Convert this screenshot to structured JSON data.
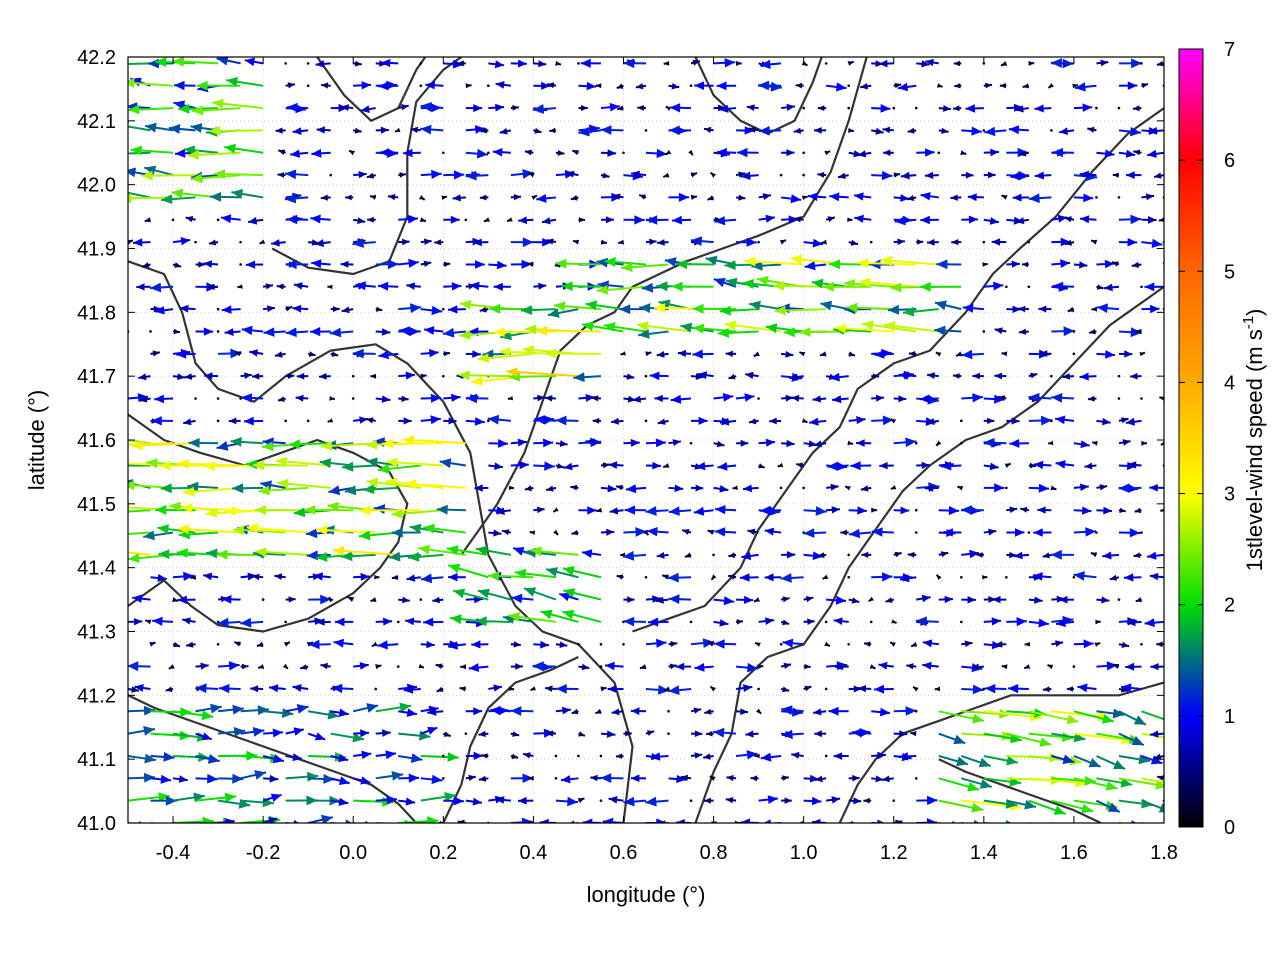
{
  "chart_data": {
    "type": "vector-field",
    "title": "",
    "xlabel": "longitude (°)",
    "ylabel": "latitude (°)",
    "xlim": [
      -0.5,
      1.8
    ],
    "ylim": [
      41.0,
      42.2
    ],
    "xticks": [
      -0.4,
      -0.2,
      0.0,
      0.2,
      0.4,
      0.6,
      0.8,
      1.0,
      1.2,
      1.4,
      1.6,
      1.8
    ],
    "xtick_labels": [
      "-0.4",
      "-0.2",
      "0.0",
      "0.2",
      "0.4",
      "0.6",
      "0.8",
      "1.0",
      "1.2",
      "1.4",
      "1.6",
      "1.8"
    ],
    "yticks": [
      41.0,
      41.1,
      41.2,
      41.3,
      41.4,
      41.5,
      41.6,
      41.7,
      41.8,
      41.9,
      42.0,
      42.1,
      42.2
    ],
    "ytick_labels": [
      "41.0",
      "41.1",
      "41.2",
      "41.3",
      "41.4",
      "41.5",
      "41.6",
      "41.7",
      "41.8",
      "41.9",
      "42.0",
      "42.1",
      "42.2"
    ],
    "grid": true,
    "colorbar": {
      "label_main": "1stlevel-wind speed (m s",
      "label_sup": "-1",
      "label_end": ")",
      "range": [
        0,
        7
      ],
      "ticks": [
        0,
        1,
        2,
        3,
        4,
        5,
        6,
        7
      ],
      "tick_labels": [
        "0",
        "1",
        "2",
        "3",
        "4",
        "5",
        "6",
        "7"
      ],
      "stops": [
        {
          "v": 0,
          "color": "#000000"
        },
        {
          "v": 1,
          "color": "#0000ff"
        },
        {
          "v": 2,
          "color": "#00dd00"
        },
        {
          "v": 3,
          "color": "#ffff00"
        },
        {
          "v": 4,
          "color": "#ffaa00"
        },
        {
          "v": 5,
          "color": "#ff6600"
        },
        {
          "v": 6,
          "color": "#ff0000"
        },
        {
          "v": 7,
          "color": "#ff00ff"
        }
      ]
    },
    "vector_grid": {
      "lon_start": -0.5,
      "lon_step": 0.05,
      "lat_start": 41.0,
      "lat_step": 0.035
    },
    "wind_regions": [
      {
        "lon": [
          -0.5,
          -0.15
        ],
        "lat": [
          41.95,
          42.2
        ],
        "u": -1.8,
        "v": 0.1
      },
      {
        "lon": [
          -0.5,
          0.3
        ],
        "lat": [
          41.42,
          41.62
        ],
        "u": -2.2,
        "v": 0.05
      },
      {
        "lon": [
          0.35,
          0.55
        ],
        "lat": [
          41.68,
          41.82
        ],
        "u": -2.6,
        "v": 0.0
      },
      {
        "lon": [
          0.55,
          1.35
        ],
        "lat": [
          41.75,
          41.88
        ],
        "u": -2.0,
        "v": 0.1
      },
      {
        "lon": [
          1.3,
          1.8
        ],
        "lat": [
          41.0,
          41.2
        ],
        "u": 2.0,
        "v": -0.4
      },
      {
        "lon": [
          -0.5,
          0.2
        ],
        "lat": [
          41.0,
          41.2
        ],
        "u": 1.4,
        "v": 0.0
      },
      {
        "lon": [
          0.3,
          0.6
        ],
        "lat": [
          41.3,
          41.42
        ],
        "u": -1.8,
        "v": 0.3
      }
    ],
    "background_wind": {
      "speed": 0.9
    },
    "contour_lines": [
      {
        "points": [
          [
            -0.5,
            41.88
          ],
          [
            -0.42,
            41.86
          ],
          [
            -0.38,
            41.8
          ],
          [
            -0.35,
            41.72
          ],
          [
            -0.3,
            41.68
          ],
          [
            -0.22,
            41.66
          ],
          [
            -0.15,
            41.7
          ],
          [
            -0.05,
            41.74
          ],
          [
            0.05,
            41.75
          ],
          [
            0.12,
            41.72
          ],
          [
            0.2,
            41.66
          ],
          [
            0.26,
            41.58
          ],
          [
            0.28,
            41.5
          ],
          [
            0.3,
            41.42
          ],
          [
            0.36,
            41.34
          ],
          [
            0.42,
            41.3
          ],
          [
            0.5,
            41.28
          ],
          [
            0.58,
            41.22
          ],
          [
            0.62,
            41.12
          ],
          [
            0.6,
            41.0
          ]
        ]
      },
      {
        "points": [
          [
            -0.18,
            41.9
          ],
          [
            -0.1,
            41.87
          ],
          [
            0.0,
            41.86
          ],
          [
            0.08,
            41.88
          ],
          [
            0.12,
            41.95
          ],
          [
            0.12,
            42.05
          ],
          [
            0.14,
            42.13
          ],
          [
            0.2,
            42.18
          ],
          [
            0.24,
            42.2
          ]
        ]
      },
      {
        "points": [
          [
            0.24,
            41.42
          ],
          [
            0.32,
            41.5
          ],
          [
            0.38,
            41.58
          ],
          [
            0.42,
            41.66
          ],
          [
            0.46,
            41.74
          ],
          [
            0.52,
            41.78
          ],
          [
            0.58,
            41.8
          ],
          [
            0.62,
            41.84
          ],
          [
            0.68,
            41.86
          ],
          [
            0.74,
            41.88
          ],
          [
            0.82,
            41.9
          ],
          [
            0.9,
            41.92
          ],
          [
            1.0,
            41.95
          ],
          [
            1.06,
            42.02
          ],
          [
            1.1,
            42.1
          ],
          [
            1.14,
            42.2
          ]
        ]
      },
      {
        "points": [
          [
            0.62,
            41.3
          ],
          [
            0.7,
            41.32
          ],
          [
            0.78,
            41.34
          ],
          [
            0.86,
            41.4
          ],
          [
            0.9,
            41.46
          ],
          [
            0.96,
            41.52
          ],
          [
            1.02,
            41.58
          ],
          [
            1.08,
            41.62
          ],
          [
            1.12,
            41.68
          ],
          [
            1.2,
            41.72
          ],
          [
            1.28,
            41.74
          ],
          [
            1.36,
            41.8
          ],
          [
            1.42,
            41.86
          ],
          [
            1.48,
            41.9
          ],
          [
            1.56,
            41.95
          ],
          [
            1.64,
            42.02
          ],
          [
            1.72,
            42.08
          ],
          [
            1.8,
            42.12
          ]
        ]
      },
      {
        "points": [
          [
            0.76,
            41.0
          ],
          [
            0.8,
            41.08
          ],
          [
            0.84,
            41.14
          ],
          [
            0.86,
            41.22
          ],
          [
            0.92,
            41.26
          ],
          [
            1.0,
            41.28
          ],
          [
            1.06,
            41.34
          ],
          [
            1.1,
            41.4
          ],
          [
            1.16,
            41.46
          ],
          [
            1.22,
            41.52
          ],
          [
            1.28,
            41.56
          ],
          [
            1.36,
            41.6
          ],
          [
            1.44,
            41.62
          ],
          [
            1.52,
            41.66
          ],
          [
            1.6,
            41.72
          ],
          [
            1.68,
            41.78
          ],
          [
            1.76,
            41.82
          ],
          [
            1.8,
            41.84
          ]
        ]
      },
      {
        "points": [
          [
            1.08,
            41.0
          ],
          [
            1.12,
            41.06
          ],
          [
            1.16,
            41.1
          ],
          [
            1.22,
            41.14
          ],
          [
            1.3,
            41.16
          ],
          [
            1.38,
            41.18
          ],
          [
            1.46,
            41.2
          ],
          [
            1.54,
            41.2
          ],
          [
            1.62,
            41.2
          ],
          [
            1.7,
            41.2
          ],
          [
            1.8,
            41.22
          ]
        ]
      },
      {
        "points": [
          [
            -0.5,
            41.34
          ],
          [
            -0.42,
            41.38
          ],
          [
            -0.36,
            41.34
          ],
          [
            -0.3,
            41.31
          ],
          [
            -0.2,
            41.3
          ],
          [
            -0.1,
            41.32
          ],
          [
            0.0,
            41.36
          ],
          [
            0.06,
            41.4
          ],
          [
            0.1,
            41.44
          ],
          [
            0.12,
            41.5
          ],
          [
            0.08,
            41.55
          ],
          [
            0.0,
            41.58
          ],
          [
            -0.08,
            41.6
          ],
          [
            -0.16,
            41.58
          ],
          [
            -0.24,
            41.56
          ],
          [
            -0.34,
            41.58
          ],
          [
            -0.42,
            41.6
          ],
          [
            -0.5,
            41.64
          ]
        ]
      },
      {
        "points": [
          [
            0.2,
            41.0
          ],
          [
            0.24,
            41.06
          ],
          [
            0.26,
            41.12
          ],
          [
            0.3,
            41.18
          ],
          [
            0.36,
            41.22
          ],
          [
            0.44,
            41.24
          ],
          [
            0.5,
            41.26
          ]
        ]
      },
      {
        "points": [
          [
            -0.5,
            41.2
          ],
          [
            -0.44,
            41.18
          ],
          [
            -0.36,
            41.16
          ],
          [
            -0.28,
            41.14
          ],
          [
            -0.2,
            41.12
          ],
          [
            -0.12,
            41.1
          ],
          [
            -0.04,
            41.08
          ],
          [
            0.04,
            41.06
          ],
          [
            0.1,
            41.03
          ],
          [
            0.14,
            41.0
          ]
        ]
      },
      {
        "points": [
          [
            0.76,
            42.2
          ],
          [
            0.8,
            42.14
          ],
          [
            0.86,
            42.1
          ],
          [
            0.92,
            42.08
          ],
          [
            0.98,
            42.1
          ],
          [
            1.02,
            42.16
          ],
          [
            1.04,
            42.2
          ]
        ]
      },
      {
        "points": [
          [
            1.3,
            41.1
          ],
          [
            1.36,
            41.08
          ],
          [
            1.44,
            41.06
          ],
          [
            1.52,
            41.04
          ],
          [
            1.6,
            41.02
          ],
          [
            1.66,
            41.0
          ]
        ]
      },
      {
        "points": [
          [
            -0.08,
            42.2
          ],
          [
            -0.02,
            42.14
          ],
          [
            0.04,
            42.1
          ],
          [
            0.1,
            42.12
          ],
          [
            0.14,
            42.18
          ],
          [
            0.16,
            42.2
          ]
        ]
      }
    ]
  }
}
